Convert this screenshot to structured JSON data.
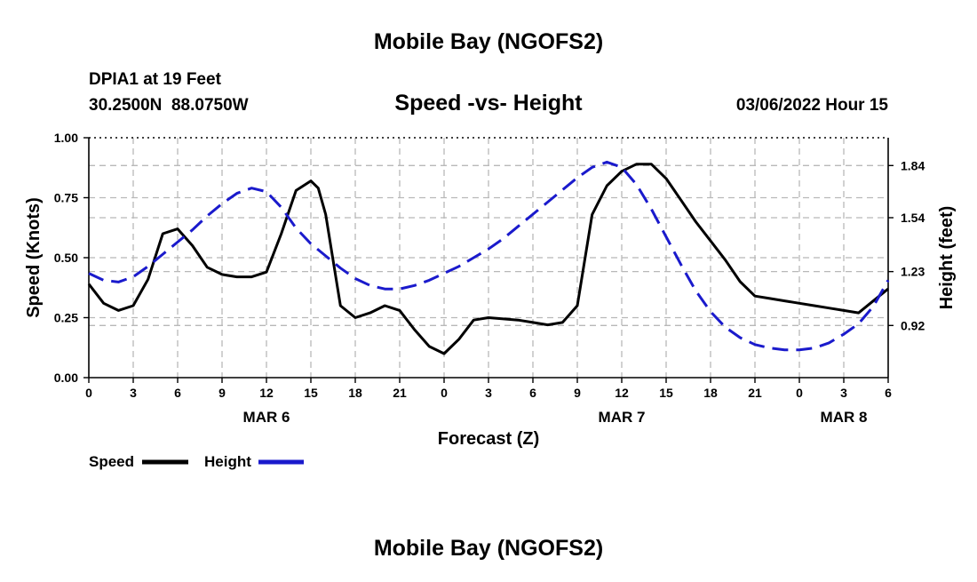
{
  "title": "Mobile Bay (NGOFS2)",
  "station": {
    "name": "DPIA1 at 19 Feet",
    "coords": "30.2500N  88.0750W",
    "timestamp": "03/06/2022 Hour 15"
  },
  "footer_title": "Mobile Bay (NGOFS2)",
  "chart_data": {
    "type": "line",
    "title": "Speed -vs- Height",
    "xlabel": "Forecast (Z)",
    "ylabel": "Speed (Knots)",
    "y2label": "Height (feet)",
    "x_range_hours": [
      0,
      54
    ],
    "ylim": [
      0.0,
      1.0
    ],
    "y2lim": [
      0.62,
      2.0
    ],
    "x_tick_labels": [
      "0",
      "3",
      "6",
      "9",
      "12",
      "15",
      "18",
      "21",
      "0",
      "3",
      "6",
      "9",
      "12",
      "15",
      "18",
      "21",
      "0",
      "3",
      "6"
    ],
    "date_labels": [
      {
        "hour": 12,
        "label": "MAR 6"
      },
      {
        "hour": 36,
        "label": "MAR 7"
      },
      {
        "hour": 51,
        "label": "MAR 8"
      }
    ],
    "y_ticks": [
      "0.00",
      "0.25",
      "0.50",
      "0.75",
      "1.00"
    ],
    "y2_ticks": [
      "0.92",
      "1.23",
      "1.54",
      "1.84"
    ],
    "grid": true,
    "legend_position": "bottom-left",
    "series": [
      {
        "name": "Speed",
        "color": "#000000",
        "style": "solid",
        "axis": "left",
        "x": [
          0,
          1,
          2,
          3,
          4,
          5,
          6,
          7,
          8,
          9,
          10,
          11,
          12,
          13,
          14,
          15,
          15.5,
          16,
          17,
          18,
          19,
          20,
          21,
          22,
          23,
          24,
          25,
          26,
          27,
          28,
          29,
          30,
          31,
          32,
          33,
          34,
          35,
          36,
          37,
          38,
          39,
          40,
          41,
          42,
          43,
          44,
          45,
          46,
          47,
          48,
          49,
          50,
          51,
          52,
          53,
          54
        ],
        "values": [
          0.39,
          0.31,
          0.28,
          0.3,
          0.41,
          0.6,
          0.62,
          0.55,
          0.46,
          0.43,
          0.42,
          0.42,
          0.44,
          0.6,
          0.78,
          0.82,
          0.79,
          0.68,
          0.3,
          0.25,
          0.27,
          0.3,
          0.28,
          0.2,
          0.13,
          0.1,
          0.16,
          0.24,
          0.25,
          0.245,
          0.24,
          0.23,
          0.22,
          0.23,
          0.3,
          0.68,
          0.8,
          0.86,
          0.89,
          0.89,
          0.83,
          0.74,
          0.65,
          0.57,
          0.49,
          0.4,
          0.34,
          0.33,
          0.32,
          0.31,
          0.3,
          0.29,
          0.28,
          0.27,
          0.32,
          0.37
        ]
      },
      {
        "name": "Height",
        "color": "#1a1acc",
        "style": "dashed",
        "axis": "right",
        "x": [
          0,
          1,
          2,
          3,
          4,
          5,
          6,
          7,
          8,
          9,
          10,
          11,
          12,
          13,
          14,
          15,
          16,
          17,
          18,
          19,
          20,
          21,
          22,
          23,
          24,
          25,
          26,
          27,
          28,
          29,
          30,
          31,
          32,
          33,
          34,
          35,
          36,
          37,
          38,
          39,
          40,
          41,
          42,
          43,
          44,
          45,
          46,
          47,
          48,
          49,
          50,
          51,
          52,
          53,
          54
        ],
        "values": [
          1.22,
          1.18,
          1.17,
          1.2,
          1.26,
          1.33,
          1.4,
          1.47,
          1.55,
          1.62,
          1.68,
          1.71,
          1.69,
          1.6,
          1.48,
          1.39,
          1.32,
          1.25,
          1.19,
          1.15,
          1.13,
          1.13,
          1.15,
          1.18,
          1.22,
          1.26,
          1.31,
          1.36,
          1.42,
          1.49,
          1.56,
          1.63,
          1.7,
          1.77,
          1.83,
          1.86,
          1.83,
          1.73,
          1.59,
          1.43,
          1.27,
          1.12,
          1.0,
          0.91,
          0.85,
          0.81,
          0.79,
          0.78,
          0.78,
          0.79,
          0.82,
          0.87,
          0.93,
          1.03,
          1.18
        ]
      }
    ]
  }
}
